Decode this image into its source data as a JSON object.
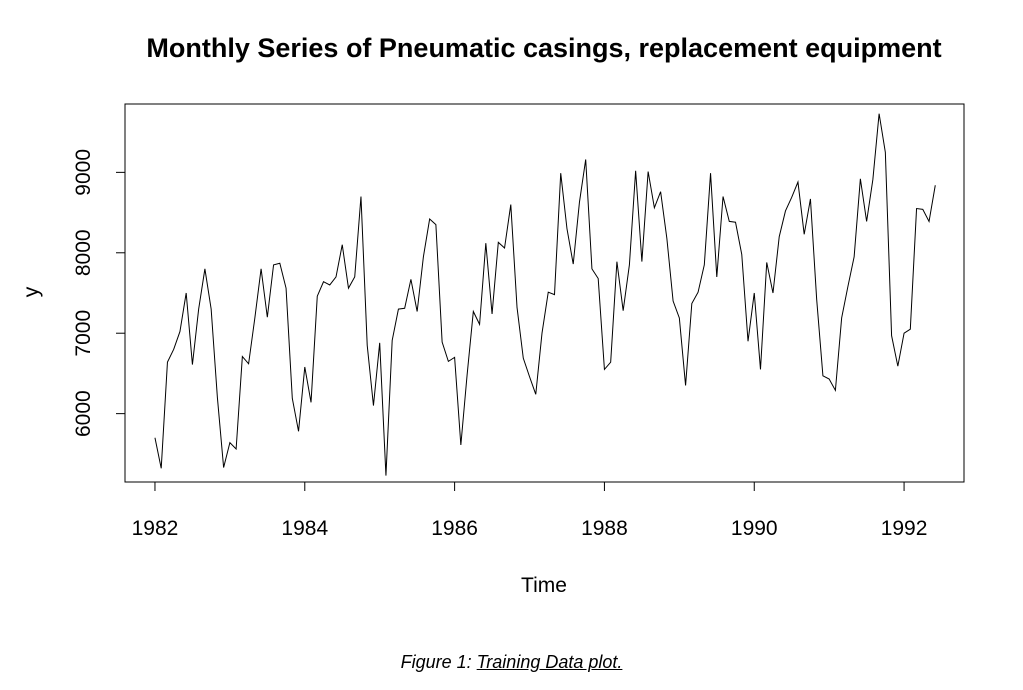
{
  "chart_data": {
    "type": "line",
    "title": "Monthly Series of Pneumatic casings, replacement equipment",
    "xlabel": "Time",
    "ylabel": "y",
    "x_ticks": [
      "1982",
      "1984",
      "1986",
      "1988",
      "1990",
      "1992"
    ],
    "y_ticks": [
      "6000",
      "7000",
      "8000",
      "9000"
    ],
    "xlim": [
      1981.6,
      1992.8
    ],
    "ylim": [
      5150,
      9850
    ],
    "series": [
      {
        "start": 1982.0,
        "frequency": 12,
        "values": [
          5700,
          5320,
          6640,
          6800,
          7020,
          7500,
          6610,
          7300,
          7800,
          7300,
          6200,
          5330,
          5640,
          5560,
          6710,
          6620,
          7190,
          7800,
          7200,
          7850,
          7870,
          7560,
          6190,
          5780,
          6580,
          6140,
          7460,
          7640,
          7600,
          7700,
          8100,
          7560,
          7700,
          8700,
          6850,
          6100,
          6880,
          5230,
          6910,
          7300,
          7310,
          7670,
          7270,
          7950,
          8420,
          8350,
          6890,
          6650,
          6700,
          5610,
          6480,
          7270,
          7110,
          8120,
          7240,
          8130,
          8060,
          8600,
          7320,
          6690,
          6460,
          6240,
          7000,
          7510,
          7480,
          8990,
          8300,
          7860,
          8630,
          9160,
          7800,
          7680,
          6550,
          6640,
          7890,
          7280,
          7850,
          9020,
          7890,
          9010,
          8560,
          8760,
          8180,
          7400,
          7190,
          6350,
          7370,
          7510,
          7850,
          8990,
          7700,
          8700,
          8390,
          8380,
          7980,
          6900,
          7500,
          6550,
          7880,
          7500,
          8200,
          8520,
          8690,
          8880,
          8230,
          8670,
          7420,
          6470,
          6430,
          6290,
          7190,
          7580,
          7950,
          8920,
          8390,
          8910,
          9730,
          9250,
          6970,
          6590,
          7000,
          7050,
          8550,
          8540,
          8390,
          8840
        ]
      }
    ]
  },
  "caption": {
    "prefix": "Figure 1: ",
    "text": "Training Data plot."
  }
}
